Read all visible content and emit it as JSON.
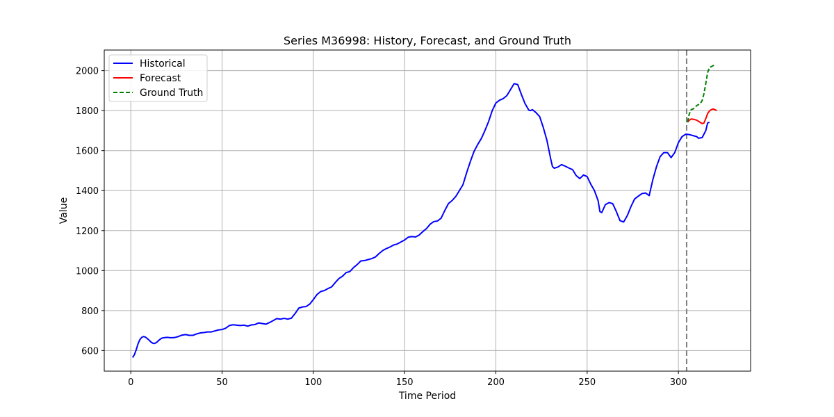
{
  "chart_data": {
    "type": "line",
    "title": "Series M36998: History, Forecast, and Ground Truth",
    "xlabel": "Time Period",
    "ylabel": "Value",
    "xlim": [
      -14.55,
      339.55
    ],
    "ylim": [
      497,
      2103
    ],
    "xticks": [
      0,
      50,
      100,
      150,
      200,
      250,
      300
    ],
    "yticks": [
      600,
      800,
      1000,
      1200,
      1400,
      1600,
      1800,
      2000
    ],
    "grid": true,
    "legend_position": "top-left",
    "forecast_start_line": 304.5,
    "colors": {
      "Historical": "#0000ff",
      "Forecast": "#ff0000",
      "Ground Truth": "#008000",
      "vline": "#808080"
    },
    "series": [
      {
        "name": "Historical",
        "style": "solid",
        "points": [
          [
            1,
            565
          ],
          [
            2,
            580
          ],
          [
            3,
            605
          ],
          [
            4,
            635
          ],
          [
            5,
            655
          ],
          [
            6,
            666
          ],
          [
            7,
            670
          ],
          [
            8,
            667
          ],
          [
            9,
            660
          ],
          [
            10,
            652
          ],
          [
            11,
            643
          ],
          [
            12,
            637
          ],
          [
            13,
            635
          ],
          [
            14,
            640
          ],
          [
            15,
            648
          ],
          [
            16,
            656
          ],
          [
            17,
            662
          ],
          [
            18,
            664
          ],
          [
            19,
            665
          ],
          [
            20,
            666
          ],
          [
            22,
            664
          ],
          [
            24,
            665
          ],
          [
            26,
            670
          ],
          [
            28,
            677
          ],
          [
            30,
            680
          ],
          [
            32,
            676
          ],
          [
            34,
            676
          ],
          [
            36,
            683
          ],
          [
            38,
            688
          ],
          [
            40,
            690
          ],
          [
            42,
            693
          ],
          [
            44,
            693
          ],
          [
            46,
            698
          ],
          [
            48,
            703
          ],
          [
            50,
            705
          ],
          [
            52,
            712
          ],
          [
            54,
            725
          ],
          [
            56,
            729
          ],
          [
            58,
            727
          ],
          [
            60,
            725
          ],
          [
            62,
            727
          ],
          [
            64,
            722
          ],
          [
            66,
            728
          ],
          [
            68,
            730
          ],
          [
            70,
            738
          ],
          [
            72,
            735
          ],
          [
            74,
            732
          ],
          [
            76,
            740
          ],
          [
            78,
            750
          ],
          [
            80,
            760
          ],
          [
            82,
            757
          ],
          [
            84,
            761
          ],
          [
            86,
            757
          ],
          [
            88,
            762
          ],
          [
            90,
            785
          ],
          [
            92,
            812
          ],
          [
            94,
            818
          ],
          [
            96,
            820
          ],
          [
            98,
            832
          ],
          [
            100,
            855
          ],
          [
            102,
            880
          ],
          [
            104,
            895
          ],
          [
            106,
            900
          ],
          [
            108,
            910
          ],
          [
            110,
            918
          ],
          [
            112,
            940
          ],
          [
            114,
            960
          ],
          [
            116,
            972
          ],
          [
            118,
            990
          ],
          [
            120,
            995
          ],
          [
            122,
            1015
          ],
          [
            124,
            1030
          ],
          [
            126,
            1048
          ],
          [
            128,
            1050
          ],
          [
            130,
            1055
          ],
          [
            132,
            1060
          ],
          [
            134,
            1068
          ],
          [
            136,
            1085
          ],
          [
            138,
            1100
          ],
          [
            140,
            1110
          ],
          [
            142,
            1118
          ],
          [
            144,
            1128
          ],
          [
            146,
            1133
          ],
          [
            148,
            1143
          ],
          [
            150,
            1153
          ],
          [
            152,
            1167
          ],
          [
            154,
            1170
          ],
          [
            156,
            1168
          ],
          [
            158,
            1178
          ],
          [
            160,
            1195
          ],
          [
            162,
            1210
          ],
          [
            164,
            1232
          ],
          [
            166,
            1245
          ],
          [
            168,
            1248
          ],
          [
            170,
            1262
          ],
          [
            172,
            1300
          ],
          [
            174,
            1335
          ],
          [
            176,
            1350
          ],
          [
            178,
            1370
          ],
          [
            180,
            1400
          ],
          [
            182,
            1430
          ],
          [
            184,
            1490
          ],
          [
            186,
            1545
          ],
          [
            188,
            1595
          ],
          [
            190,
            1630
          ],
          [
            192,
            1660
          ],
          [
            194,
            1700
          ],
          [
            196,
            1745
          ],
          [
            198,
            1800
          ],
          [
            200,
            1838
          ],
          [
            202,
            1852
          ],
          [
            204,
            1860
          ],
          [
            206,
            1875
          ],
          [
            208,
            1905
          ],
          [
            210,
            1935
          ],
          [
            212,
            1930
          ],
          [
            214,
            1880
          ],
          [
            216,
            1835
          ],
          [
            218,
            1803
          ],
          [
            219,
            1800
          ],
          [
            220,
            1805
          ],
          [
            222,
            1790
          ],
          [
            224,
            1770
          ],
          [
            226,
            1715
          ],
          [
            228,
            1650
          ],
          [
            230,
            1560
          ],
          [
            231,
            1520
          ],
          [
            232,
            1512
          ],
          [
            234,
            1518
          ],
          [
            236,
            1530
          ],
          [
            238,
            1522
          ],
          [
            240,
            1513
          ],
          [
            242,
            1505
          ],
          [
            244,
            1475
          ],
          [
            246,
            1460
          ],
          [
            248,
            1478
          ],
          [
            250,
            1470
          ],
          [
            252,
            1432
          ],
          [
            254,
            1400
          ],
          [
            256,
            1350
          ],
          [
            257,
            1295
          ],
          [
            258,
            1290
          ],
          [
            260,
            1330
          ],
          [
            262,
            1340
          ],
          [
            264,
            1335
          ],
          [
            266,
            1295
          ],
          [
            268,
            1250
          ],
          [
            270,
            1243
          ],
          [
            272,
            1275
          ],
          [
            274,
            1320
          ],
          [
            276,
            1358
          ],
          [
            278,
            1372
          ],
          [
            280,
            1385
          ],
          [
            282,
            1388
          ],
          [
            284,
            1375
          ],
          [
            286,
            1455
          ],
          [
            288,
            1520
          ],
          [
            290,
            1570
          ],
          [
            292,
            1590
          ],
          [
            294,
            1590
          ],
          [
            296,
            1565
          ],
          [
            298,
            1590
          ],
          [
            300,
            1640
          ],
          [
            302,
            1670
          ],
          [
            304,
            1682
          ],
          [
            306,
            1680
          ],
          [
            308,
            1675
          ],
          [
            310,
            1670
          ],
          [
            311,
            1662
          ],
          [
            313,
            1665
          ],
          [
            315,
            1700
          ],
          [
            316,
            1738
          ],
          [
            317,
            1742
          ]
        ]
      },
      {
        "name": "Forecast",
        "style": "solid",
        "points": [
          [
            305,
            1742
          ],
          [
            306,
            1752
          ],
          [
            307,
            1758
          ],
          [
            308,
            1757
          ],
          [
            309,
            1755
          ],
          [
            310,
            1752
          ],
          [
            311,
            1747
          ],
          [
            312,
            1741
          ],
          [
            313,
            1735
          ],
          [
            314,
            1738
          ],
          [
            315,
            1760
          ],
          [
            316,
            1785
          ],
          [
            317,
            1798
          ],
          [
            318,
            1805
          ],
          [
            319,
            1808
          ],
          [
            320,
            1805
          ],
          [
            321,
            1800
          ]
        ]
      },
      {
        "name": "Ground Truth",
        "style": "dashed",
        "points": [
          [
            305,
            1742
          ],
          [
            306,
            1785
          ],
          [
            307,
            1805
          ],
          [
            308,
            1808
          ],
          [
            309,
            1815
          ],
          [
            310,
            1825
          ],
          [
            311,
            1830
          ],
          [
            312,
            1835
          ],
          [
            313,
            1850
          ],
          [
            314,
            1885
          ],
          [
            315,
            1935
          ],
          [
            316,
            1990
          ],
          [
            317,
            2015
          ],
          [
            318,
            2020
          ],
          [
            319,
            2025
          ],
          [
            320,
            2028
          ]
        ]
      }
    ]
  }
}
